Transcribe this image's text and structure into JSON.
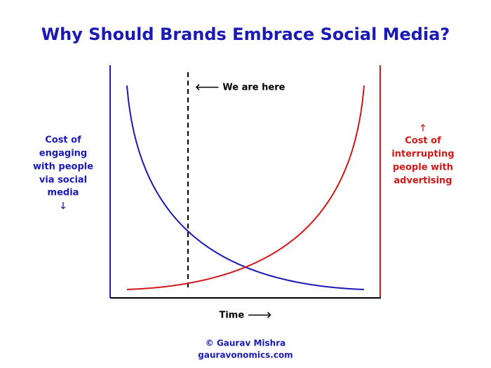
{
  "title": "Why Should Brands Embrace Social Media?",
  "left_label": {
    "lines": [
      "Cost of",
      "engaging",
      "with people",
      "via social",
      "media"
    ],
    "arrow": "🡓"
  },
  "right_label": {
    "arrow": "🡑",
    "lines": [
      "Cost of",
      "interrupting",
      "people with",
      "advertising"
    ]
  },
  "marker_label": "🡐 We are here",
  "x_axis_label": "Time 🡒",
  "footer": {
    "author": "© Gaurav Mishra",
    "website": "gauravonomics.com"
  }
}
